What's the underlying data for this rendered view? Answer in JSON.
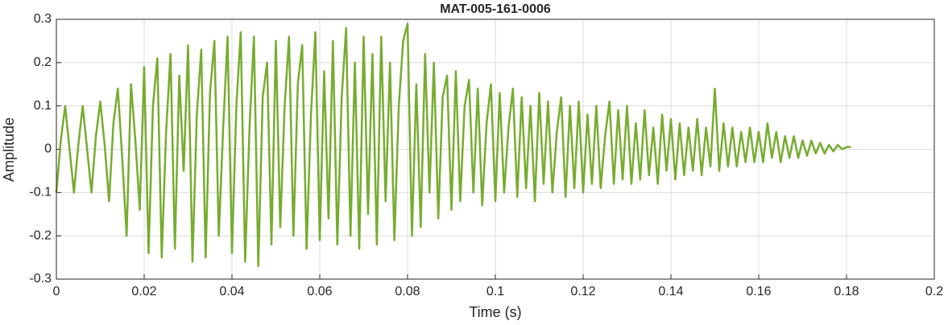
{
  "chart_data": {
    "type": "line",
    "title": "MAT-005-161-0006",
    "x_label": "Time (s)",
    "y_label": "Amplitude",
    "color": "#77ac30",
    "grid": true,
    "xlim": [
      0,
      0.2
    ],
    "xticks": [
      0,
      0.02,
      0.04,
      0.06,
      0.08,
      0.1,
      0.12,
      0.14,
      0.16,
      0.18,
      0.2
    ],
    "ylim": [
      -0.3,
      0.3
    ],
    "yticks": [
      -0.3,
      -0.2,
      -0.1,
      0,
      0.1,
      0.2,
      0.3
    ],
    "x": [
      0,
      0.001,
      0.002,
      0.003,
      0.004,
      0.005,
      0.006,
      0.007,
      0.008,
      0.009,
      0.01,
      0.011,
      0.012,
      0.013,
      0.014,
      0.015,
      0.016,
      0.017,
      0.018,
      0.019,
      0.02,
      0.021,
      0.022,
      0.023,
      0.024,
      0.025,
      0.026,
      0.027,
      0.028,
      0.029,
      0.03,
      0.031,
      0.032,
      0.033,
      0.034,
      0.035,
      0.036,
      0.037,
      0.038,
      0.039,
      0.04,
      0.041,
      0.042,
      0.043,
      0.044,
      0.045,
      0.046,
      0.047,
      0.048,
      0.049,
      0.05,
      0.051,
      0.052,
      0.053,
      0.054,
      0.055,
      0.056,
      0.057,
      0.058,
      0.059,
      0.06,
      0.061,
      0.062,
      0.063,
      0.064,
      0.065,
      0.066,
      0.067,
      0.068,
      0.069,
      0.07,
      0.071,
      0.072,
      0.073,
      0.074,
      0.075,
      0.076,
      0.077,
      0.078,
      0.079,
      0.08,
      0.081,
      0.082,
      0.083,
      0.084,
      0.085,
      0.086,
      0.087,
      0.088,
      0.089,
      0.09,
      0.091,
      0.092,
      0.093,
      0.094,
      0.095,
      0.096,
      0.097,
      0.098,
      0.099,
      0.1,
      0.101,
      0.102,
      0.103,
      0.104,
      0.105,
      0.106,
      0.107,
      0.108,
      0.109,
      0.11,
      0.111,
      0.112,
      0.113,
      0.114,
      0.115,
      0.116,
      0.117,
      0.118,
      0.119,
      0.12,
      0.121,
      0.122,
      0.123,
      0.124,
      0.125,
      0.126,
      0.127,
      0.128,
      0.129,
      0.13,
      0.131,
      0.132,
      0.133,
      0.134,
      0.135,
      0.136,
      0.137,
      0.138,
      0.139,
      0.14,
      0.141,
      0.142,
      0.143,
      0.144,
      0.145,
      0.146,
      0.147,
      0.148,
      0.149,
      0.15,
      0.151,
      0.152,
      0.153,
      0.154,
      0.155,
      0.156,
      0.157,
      0.158,
      0.159,
      0.16,
      0.161,
      0.162,
      0.163,
      0.164,
      0.165,
      0.166,
      0.167,
      0.168,
      0.169,
      0.17,
      0.171,
      0.172,
      0.173,
      0.174,
      0.175,
      0.176,
      0.177,
      0.178,
      0.179,
      0.18,
      0.181
    ],
    "values": [
      -0.1,
      0.02,
      0.1,
      0.0,
      -0.1,
      0.01,
      0.1,
      0.0,
      -0.1,
      0.03,
      0.11,
      0.01,
      -0.12,
      0.06,
      0.14,
      -0.02,
      -0.2,
      0.15,
      0.02,
      -0.14,
      0.19,
      -0.24,
      0.1,
      0.21,
      -0.25,
      0.04,
      0.22,
      -0.23,
      0.17,
      -0.05,
      0.24,
      -0.26,
      0.08,
      0.23,
      -0.25,
      0.13,
      0.25,
      -0.2,
      0.05,
      0.26,
      -0.24,
      0.1,
      0.27,
      -0.26,
      0.05,
      0.26,
      -0.27,
      0.12,
      0.2,
      -0.22,
      0.25,
      -0.18,
      0.1,
      0.26,
      -0.2,
      0.15,
      0.24,
      -0.23,
      0.08,
      0.27,
      -0.21,
      0.18,
      -0.16,
      0.25,
      -0.22,
      0.12,
      0.28,
      -0.2,
      0.2,
      -0.23,
      0.26,
      -0.15,
      0.22,
      -0.22,
      0.26,
      -0.12,
      0.2,
      -0.21,
      0.1,
      0.25,
      0.29,
      -0.2,
      0.15,
      -0.18,
      0.22,
      -0.1,
      0.2,
      -0.16,
      0.12,
      0.17,
      -0.14,
      0.18,
      -0.12,
      0.1,
      0.16,
      -0.1,
      0.14,
      -0.13,
      0.06,
      0.15,
      -0.12,
      0.13,
      -0.1,
      0.05,
      0.14,
      -0.11,
      0.12,
      -0.09,
      0.1,
      -0.12,
      0.13,
      -0.08,
      0.11,
      -0.1,
      0.04,
      0.12,
      -0.11,
      0.1,
      -0.09,
      0.11,
      -0.1,
      0.08,
      -0.08,
      0.1,
      -0.09,
      0.03,
      0.11,
      -0.08,
      0.09,
      -0.07,
      0.1,
      -0.08,
      0.06,
      -0.07,
      0.09,
      -0.06,
      0.05,
      -0.08,
      0.08,
      -0.05,
      0.07,
      -0.07,
      0.06,
      -0.06,
      0.05,
      -0.05,
      0.07,
      -0.06,
      0.05,
      -0.04,
      0.14,
      -0.05,
      0.06,
      -0.04,
      0.05,
      -0.04,
      0.04,
      -0.03,
      0.05,
      -0.03,
      0.04,
      -0.03,
      0.06,
      -0.02,
      0.04,
      -0.03,
      0.03,
      -0.02,
      0.03,
      -0.02,
      0.02,
      -0.015,
      0.02,
      -0.01,
      0.015,
      -0.01,
      0.01,
      -0.005,
      0.01,
      0.0,
      0.005,
      0.005
    ]
  }
}
